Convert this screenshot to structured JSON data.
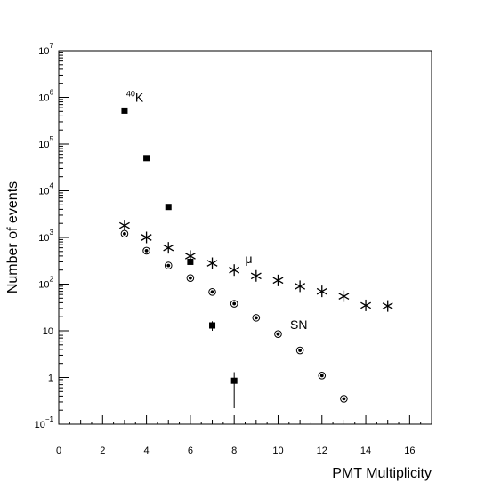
{
  "chart_data": {
    "type": "scatter",
    "xlabel": "PMT Multiplicity",
    "ylabel": "Number of events",
    "xlim": [
      0,
      17
    ],
    "ylim_log10": [
      -1,
      7
    ],
    "yscale": "log",
    "grid": false,
    "x_ticks": [
      {
        "value": 0,
        "label": "0"
      },
      {
        "value": 2,
        "label": "2"
      },
      {
        "value": 4,
        "label": "4"
      },
      {
        "value": 6,
        "label": "6"
      },
      {
        "value": 8,
        "label": "8"
      },
      {
        "value": 10,
        "label": "10"
      },
      {
        "value": 12,
        "label": "12"
      },
      {
        "value": 14,
        "label": "14"
      },
      {
        "value": 16,
        "label": "16"
      }
    ],
    "y_ticks": [
      {
        "exp": -1,
        "base": "10",
        "sup": "−1"
      },
      {
        "exp": 0,
        "base": "1",
        "sup": ""
      },
      {
        "exp": 1,
        "base": "10",
        "sup": ""
      },
      {
        "exp": 2,
        "base": "10",
        "sup": "2"
      },
      {
        "exp": 3,
        "base": "10",
        "sup": "3"
      },
      {
        "exp": 4,
        "base": "10",
        "sup": "4"
      },
      {
        "exp": 5,
        "base": "10",
        "sup": "5"
      },
      {
        "exp": 6,
        "base": "10",
        "sup": "6"
      },
      {
        "exp": 7,
        "base": "10",
        "sup": "7"
      }
    ],
    "series": [
      {
        "label_sup": "40",
        "label_text": "K",
        "marker": "square",
        "label_at": {
          "x": 3.08,
          "y": 800000
        },
        "points": [
          {
            "x": 3,
            "y": 520000
          },
          {
            "x": 4,
            "y": 50000
          },
          {
            "x": 5,
            "y": 4500
          },
          {
            "x": 6,
            "y": 300
          },
          {
            "x": 7,
            "y": 13,
            "err_low": 10,
            "err_high": 16
          },
          {
            "x": 8,
            "y": 0.85,
            "err_low": 0.22,
            "err_high": 1.3
          }
        ]
      },
      {
        "label_text": "μ",
        "marker": "star",
        "label_at": {
          "x": 8.5,
          "y": 280
        },
        "points": [
          {
            "x": 3,
            "y": 1800
          },
          {
            "x": 4,
            "y": 1000
          },
          {
            "x": 5,
            "y": 600
          },
          {
            "x": 6,
            "y": 400
          },
          {
            "x": 7,
            "y": 280
          },
          {
            "x": 8,
            "y": 200
          },
          {
            "x": 9,
            "y": 150
          },
          {
            "x": 10,
            "y": 120
          },
          {
            "x": 11,
            "y": 90
          },
          {
            "x": 12,
            "y": 70
          },
          {
            "x": 13,
            "y": 55
          },
          {
            "x": 14,
            "y": 35
          },
          {
            "x": 15,
            "y": 34
          }
        ]
      },
      {
        "label_text": "SN",
        "marker": "circle-dot",
        "label_at": {
          "x": 10.55,
          "y": 11
        },
        "points": [
          {
            "x": 3,
            "y": 1200
          },
          {
            "x": 4,
            "y": 520
          },
          {
            "x": 5,
            "y": 250
          },
          {
            "x": 6,
            "y": 135
          },
          {
            "x": 7,
            "y": 68
          },
          {
            "x": 8,
            "y": 38
          },
          {
            "x": 9,
            "y": 19
          },
          {
            "x": 10,
            "y": 8.5
          },
          {
            "x": 11,
            "y": 3.8
          },
          {
            "x": 12,
            "y": 1.1
          },
          {
            "x": 13,
            "y": 0.35
          }
        ]
      }
    ]
  }
}
